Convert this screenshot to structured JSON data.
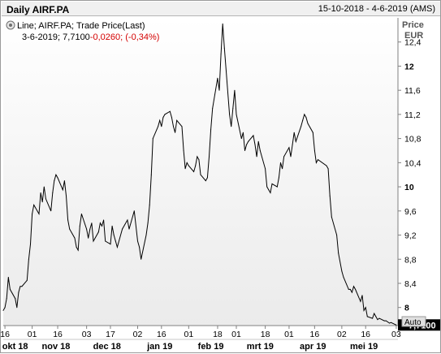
{
  "window": {
    "title": "Daily AIRF.PA",
    "date_range": "15-10-2018 - 4-6-2019 (AMS)"
  },
  "legend": {
    "series_desc": "Line; AIRF.PA; Trade Price(Last)",
    "date": "3-6-2019;",
    "last": "7,7100",
    "change": "-0,0260;",
    "change_pct": "(-0,34%)",
    "icon": "settings-icon"
  },
  "y_axis": {
    "unit_line1": "Price",
    "unit_line2": "EUR",
    "ticks": [
      {
        "value": 8,
        "label": "8",
        "bold": true
      },
      {
        "value": 8.4,
        "label": "8,4",
        "bold": false
      },
      {
        "value": 8.8,
        "label": "8,8",
        "bold": false
      },
      {
        "value": 9.2,
        "label": "9,2",
        "bold": false
      },
      {
        "value": 9.6,
        "label": "9,6",
        "bold": false
      },
      {
        "value": 10,
        "label": "10",
        "bold": true
      },
      {
        "value": 10.4,
        "label": "10,4",
        "bold": false
      },
      {
        "value": 10.8,
        "label": "10,8",
        "bold": false
      },
      {
        "value": 11.2,
        "label": "11,2",
        "bold": false
      },
      {
        "value": 11.6,
        "label": "11,6",
        "bold": false
      },
      {
        "value": 12,
        "label": "12",
        "bold": true
      },
      {
        "value": 12.4,
        "label": "12,4",
        "bold": false
      }
    ],
    "last_price_label": "7,7100",
    "scale_mode": "Auto"
  },
  "x_axis": {
    "day_ticks": [
      {
        "date": "2018-10-16",
        "label": "16"
      },
      {
        "date": "2018-11-01",
        "label": "01"
      },
      {
        "date": "2018-11-16",
        "label": "16"
      },
      {
        "date": "2018-12-03",
        "label": "03"
      },
      {
        "date": "2018-12-17",
        "label": "17"
      },
      {
        "date": "2019-01-02",
        "label": "02"
      },
      {
        "date": "2019-01-16",
        "label": "16"
      },
      {
        "date": "2019-02-01",
        "label": "01"
      },
      {
        "date": "2019-02-18",
        "label": "18"
      },
      {
        "date": "2019-03-01",
        "label": "01"
      },
      {
        "date": "2019-03-18",
        "label": "18"
      },
      {
        "date": "2019-04-01",
        "label": "01"
      },
      {
        "date": "2019-04-16",
        "label": "16"
      },
      {
        "date": "2019-05-02",
        "label": "02"
      },
      {
        "date": "2019-05-16",
        "label": "16"
      },
      {
        "date": "2019-06-03",
        "label": "03"
      }
    ],
    "months": [
      {
        "date": "2018-10-22",
        "label": "okt 18"
      },
      {
        "date": "2018-11-15",
        "label": "nov 18"
      },
      {
        "date": "2018-12-15",
        "label": "dec 18"
      },
      {
        "date": "2019-01-15",
        "label": "jan 19"
      },
      {
        "date": "2019-02-14",
        "label": "feb 19"
      },
      {
        "date": "2019-03-15",
        "label": "mrt 19"
      },
      {
        "date": "2019-04-15",
        "label": "apr 19"
      },
      {
        "date": "2019-05-15",
        "label": "mei 19"
      }
    ]
  },
  "chart_data": {
    "type": "line",
    "title": "Daily AIRF.PA",
    "ylabel": "Price EUR",
    "ylim": [
      7.7,
      12.8
    ],
    "xlim": [
      "2018-10-15",
      "2019-06-04"
    ],
    "grid": false,
    "series": [
      {
        "name": "Line; AIRF.PA; Trade Price(Last)",
        "color": "#000000",
        "points": [
          [
            "2018-10-15",
            7.95
          ],
          [
            "2018-10-16",
            8.0
          ],
          [
            "2018-10-17",
            8.15
          ],
          [
            "2018-10-18",
            8.5
          ],
          [
            "2018-10-19",
            8.3
          ],
          [
            "2018-10-22",
            8.15
          ],
          [
            "2018-10-23",
            8.0
          ],
          [
            "2018-10-24",
            8.25
          ],
          [
            "2018-10-25",
            8.35
          ],
          [
            "2018-10-26",
            8.35
          ],
          [
            "2018-10-29",
            8.45
          ],
          [
            "2018-10-30",
            8.8
          ],
          [
            "2018-10-31",
            9.05
          ],
          [
            "2018-11-01",
            9.55
          ],
          [
            "2018-11-02",
            9.7
          ],
          [
            "2018-11-05",
            9.55
          ],
          [
            "2018-11-06",
            9.9
          ],
          [
            "2018-11-07",
            9.75
          ],
          [
            "2018-11-08",
            10.0
          ],
          [
            "2018-11-09",
            9.8
          ],
          [
            "2018-11-12",
            9.6
          ],
          [
            "2018-11-13",
            9.9
          ],
          [
            "2018-11-14",
            10.1
          ],
          [
            "2018-11-15",
            10.2
          ],
          [
            "2018-11-16",
            10.15
          ],
          [
            "2018-11-19",
            9.95
          ],
          [
            "2018-11-20",
            10.1
          ],
          [
            "2018-11-21",
            9.85
          ],
          [
            "2018-11-22",
            9.45
          ],
          [
            "2018-11-23",
            9.3
          ],
          [
            "2018-11-26",
            9.15
          ],
          [
            "2018-11-27",
            9.0
          ],
          [
            "2018-11-28",
            8.95
          ],
          [
            "2018-11-29",
            9.35
          ],
          [
            "2018-11-30",
            9.55
          ],
          [
            "2018-12-03",
            9.3
          ],
          [
            "2018-12-04",
            9.15
          ],
          [
            "2018-12-05",
            9.3
          ],
          [
            "2018-12-06",
            9.4
          ],
          [
            "2018-12-07",
            9.1
          ],
          [
            "2018-12-10",
            9.25
          ],
          [
            "2018-12-11",
            9.4
          ],
          [
            "2018-12-12",
            9.35
          ],
          [
            "2018-12-13",
            9.45
          ],
          [
            "2018-12-14",
            9.1
          ],
          [
            "2018-12-17",
            9.05
          ],
          [
            "2018-12-18",
            9.35
          ],
          [
            "2018-12-19",
            9.2
          ],
          [
            "2018-12-20",
            9.1
          ],
          [
            "2018-12-21",
            9.0
          ],
          [
            "2018-12-24",
            9.3
          ],
          [
            "2018-12-27",
            9.45
          ],
          [
            "2018-12-28",
            9.3
          ],
          [
            "2018-12-31",
            9.6
          ],
          [
            "2019-01-02",
            9.1
          ],
          [
            "2019-01-03",
            9.0
          ],
          [
            "2019-01-04",
            8.8
          ],
          [
            "2019-01-07",
            9.2
          ],
          [
            "2019-01-08",
            9.4
          ],
          [
            "2019-01-09",
            9.7
          ],
          [
            "2019-01-10",
            10.2
          ],
          [
            "2019-01-11",
            10.8
          ],
          [
            "2019-01-14",
            11.0
          ],
          [
            "2019-01-15",
            11.1
          ],
          [
            "2019-01-16",
            11.0
          ],
          [
            "2019-01-17",
            11.15
          ],
          [
            "2019-01-18",
            11.2
          ],
          [
            "2019-01-21",
            11.25
          ],
          [
            "2019-01-22",
            11.15
          ],
          [
            "2019-01-23",
            11.0
          ],
          [
            "2019-01-24",
            10.9
          ],
          [
            "2019-01-25",
            11.1
          ],
          [
            "2019-01-28",
            11.0
          ],
          [
            "2019-01-29",
            10.6
          ],
          [
            "2019-01-30",
            10.3
          ],
          [
            "2019-01-31",
            10.4
          ],
          [
            "2019-02-01",
            10.35
          ],
          [
            "2019-02-04",
            10.25
          ],
          [
            "2019-02-05",
            10.35
          ],
          [
            "2019-02-06",
            10.5
          ],
          [
            "2019-02-07",
            10.45
          ],
          [
            "2019-02-08",
            10.2
          ],
          [
            "2019-02-11",
            10.1
          ],
          [
            "2019-02-12",
            10.15
          ],
          [
            "2019-02-13",
            10.5
          ],
          [
            "2019-02-14",
            10.95
          ],
          [
            "2019-02-15",
            11.3
          ],
          [
            "2019-02-18",
            11.8
          ],
          [
            "2019-02-19",
            11.6
          ],
          [
            "2019-02-20",
            12.2
          ],
          [
            "2019-02-21",
            12.7
          ],
          [
            "2019-02-22",
            12.3
          ],
          [
            "2019-02-25",
            11.2
          ],
          [
            "2019-02-26",
            11.0
          ],
          [
            "2019-02-27",
            11.3
          ],
          [
            "2019-02-28",
            11.6
          ],
          [
            "2019-03-01",
            11.2
          ],
          [
            "2019-03-04",
            10.8
          ],
          [
            "2019-03-05",
            10.9
          ],
          [
            "2019-03-06",
            10.6
          ],
          [
            "2019-03-07",
            10.7
          ],
          [
            "2019-03-08",
            10.75
          ],
          [
            "2019-03-11",
            10.85
          ],
          [
            "2019-03-12",
            10.7
          ],
          [
            "2019-03-13",
            10.5
          ],
          [
            "2019-03-14",
            10.75
          ],
          [
            "2019-03-15",
            10.6
          ],
          [
            "2019-03-18",
            10.3
          ],
          [
            "2019-03-19",
            10.0
          ],
          [
            "2019-03-20",
            9.95
          ],
          [
            "2019-03-21",
            9.9
          ],
          [
            "2019-03-22",
            10.05
          ],
          [
            "2019-03-25",
            10.0
          ],
          [
            "2019-03-26",
            10.15
          ],
          [
            "2019-03-27",
            10.4
          ],
          [
            "2019-03-28",
            10.3
          ],
          [
            "2019-03-29",
            10.5
          ],
          [
            "2019-04-01",
            10.65
          ],
          [
            "2019-04-02",
            10.5
          ],
          [
            "2019-04-03",
            10.7
          ],
          [
            "2019-04-04",
            10.9
          ],
          [
            "2019-04-05",
            10.75
          ],
          [
            "2019-04-08",
            11.0
          ],
          [
            "2019-04-09",
            11.1
          ],
          [
            "2019-04-10",
            11.2
          ],
          [
            "2019-04-11",
            11.15
          ],
          [
            "2019-04-12",
            11.05
          ],
          [
            "2019-04-15",
            10.9
          ],
          [
            "2019-04-16",
            10.6
          ],
          [
            "2019-04-17",
            10.4
          ],
          [
            "2019-04-18",
            10.45
          ],
          [
            "2019-04-23",
            10.35
          ],
          [
            "2019-04-24",
            10.3
          ],
          [
            "2019-04-25",
            9.85
          ],
          [
            "2019-04-26",
            9.5
          ],
          [
            "2019-04-29",
            9.2
          ],
          [
            "2019-04-30",
            8.9
          ],
          [
            "2019-05-02",
            8.6
          ],
          [
            "2019-05-03",
            8.5
          ],
          [
            "2019-05-06",
            8.3
          ],
          [
            "2019-05-07",
            8.3
          ],
          [
            "2019-05-08",
            8.25
          ],
          [
            "2019-05-09",
            8.35
          ],
          [
            "2019-05-10",
            8.3
          ],
          [
            "2019-05-13",
            8.1
          ],
          [
            "2019-05-14",
            8.2
          ],
          [
            "2019-05-15",
            7.95
          ],
          [
            "2019-05-16",
            8.0
          ],
          [
            "2019-05-17",
            7.85
          ],
          [
            "2019-05-20",
            7.82
          ],
          [
            "2019-05-21",
            7.9
          ],
          [
            "2019-05-22",
            7.85
          ],
          [
            "2019-05-23",
            7.8
          ],
          [
            "2019-05-24",
            7.82
          ],
          [
            "2019-05-27",
            7.78
          ],
          [
            "2019-05-28",
            7.78
          ],
          [
            "2019-05-29",
            7.76
          ],
          [
            "2019-05-30",
            7.74
          ],
          [
            "2019-05-31",
            7.75
          ],
          [
            "2019-06-03",
            7.71
          ]
        ]
      }
    ]
  }
}
